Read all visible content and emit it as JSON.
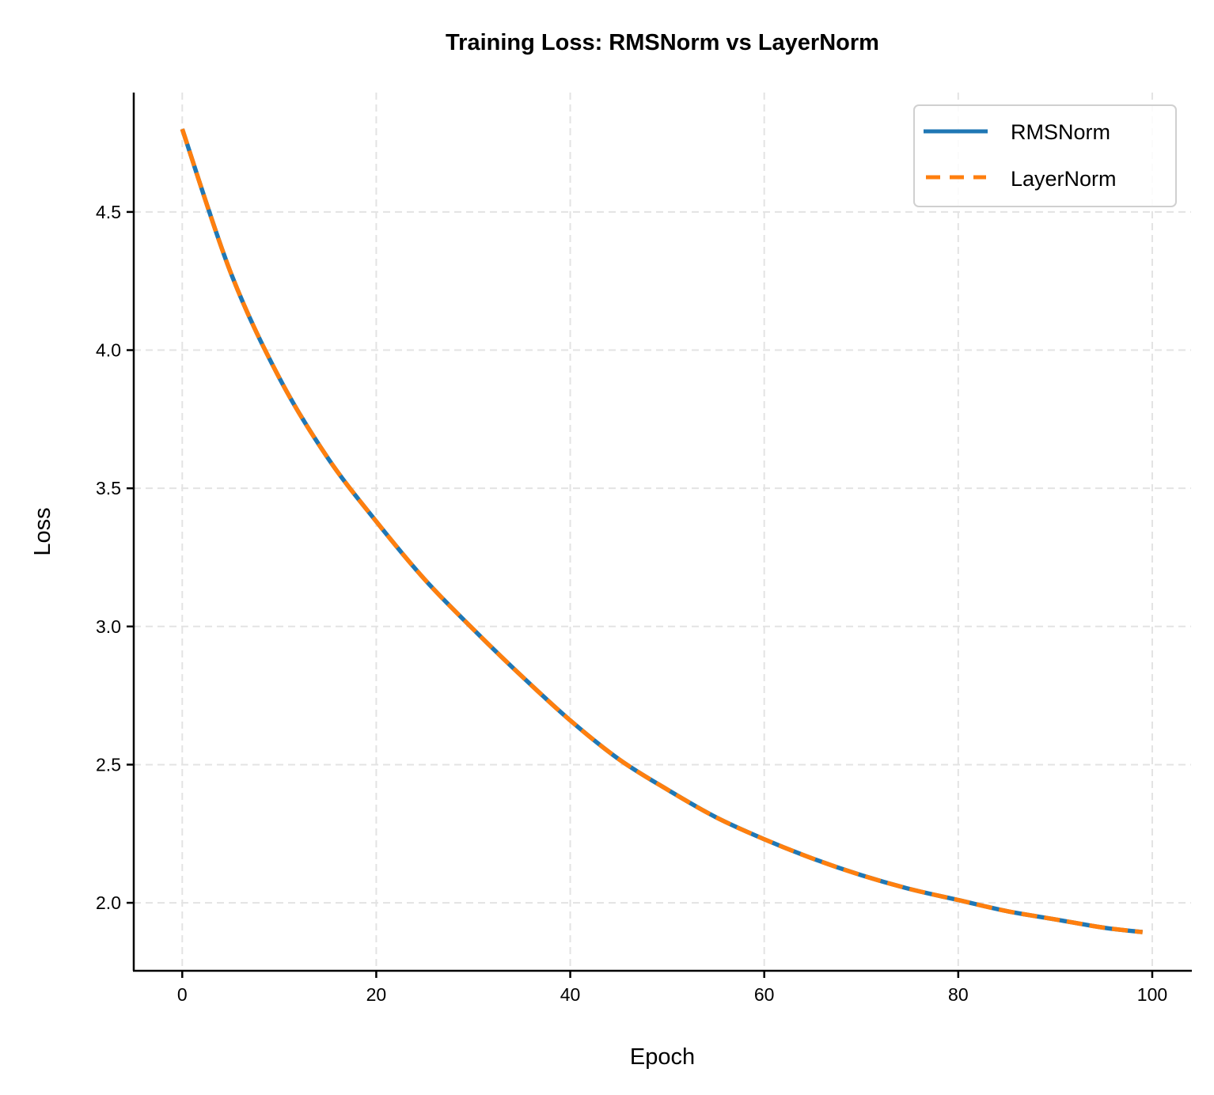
{
  "chart_data": {
    "type": "line",
    "title": "Training Loss: RMSNorm vs LayerNorm",
    "xlabel": "Epoch",
    "ylabel": "Loss",
    "xlim": [
      -5,
      104
    ],
    "ylim": [
      1.754,
      4.932
    ],
    "xticks": [
      0,
      20,
      40,
      60,
      80,
      100
    ],
    "xtick_labels": [
      "0",
      "20",
      "40",
      "60",
      "80",
      "100"
    ],
    "yticks": [
      2.0,
      2.5,
      3.0,
      3.5,
      4.0,
      4.5
    ],
    "ytick_labels": [
      "2.0",
      "2.5",
      "3.0",
      "3.5",
      "4.0",
      "4.5"
    ],
    "grid": true,
    "legend_position": "top-right",
    "x": [
      0,
      5,
      10,
      15,
      20,
      25,
      30,
      35,
      40,
      45,
      50,
      55,
      60,
      65,
      70,
      75,
      80,
      85,
      90,
      95,
      99
    ],
    "series": [
      {
        "name": "RMSNorm",
        "color": "#1f77b4",
        "style": "solid",
        "values": [
          4.8,
          4.28,
          3.9,
          3.61,
          3.38,
          3.17,
          2.99,
          2.82,
          2.66,
          2.52,
          2.41,
          2.31,
          2.23,
          2.16,
          2.1,
          2.05,
          2.01,
          1.97,
          1.94,
          1.91,
          1.894
        ]
      },
      {
        "name": "LayerNorm",
        "color": "#ff7f0e",
        "style": "dashed",
        "values": [
          4.8,
          4.28,
          3.9,
          3.61,
          3.38,
          3.17,
          2.99,
          2.82,
          2.66,
          2.52,
          2.41,
          2.31,
          2.23,
          2.16,
          2.1,
          2.05,
          2.01,
          1.97,
          1.94,
          1.91,
          1.894
        ]
      }
    ]
  }
}
